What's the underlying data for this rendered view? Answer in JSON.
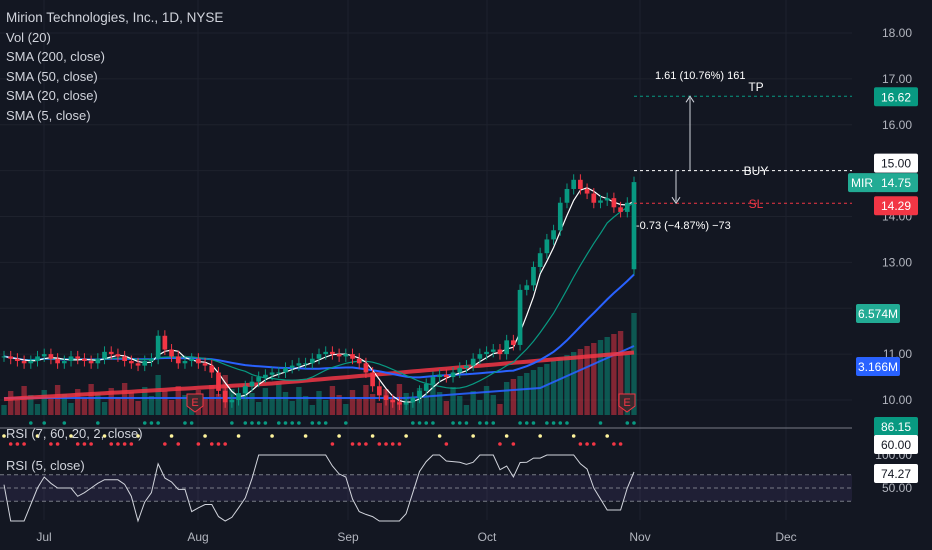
{
  "header": {
    "title": "Mirion Technologies, Inc., 1D, NYSE",
    "indicators": [
      "Vol (20)",
      "SMA (200, close)",
      "SMA (50, close)",
      "SMA (20, close)",
      "SMA (5, close)"
    ]
  },
  "rsi_stoch_label": "RSI (7, 60, 20, 2, close)",
  "rsi_label": "RSI (5, close)",
  "price_axis": [
    "18.00",
    "17.00",
    "16.00",
    "14.00",
    "13.00",
    "11.00",
    "10.00"
  ],
  "rsi_axis": [
    "100.00",
    "50.00"
  ],
  "x_axis": [
    "Jul",
    "Aug",
    "Sep",
    "Oct",
    "Nov",
    "Dec"
  ],
  "badges": {
    "tp": {
      "text": "16.62",
      "color": "#089981"
    },
    "buy": {
      "text": "15.00",
      "color": "#ffffff"
    },
    "last": {
      "ticker": "MIR",
      "text": "14.75",
      "color": "#22ab94"
    },
    "sl": {
      "text": "14.29",
      "color": "#f23645"
    },
    "vol1": {
      "text": "6.574M",
      "color": "#22ab94"
    },
    "vol2": {
      "text": "3.166M",
      "color": "#2962ff"
    },
    "rsi_a": {
      "text": "86.15",
      "color": "#089981"
    },
    "rsi_b": {
      "text": "60.00",
      "color": "#ffffff"
    },
    "rsi_c": {
      "text": "74.27",
      "color": "#ffffff"
    },
    "rsi_d": {
      "text": "50.00"
    }
  },
  "position": {
    "tp_label": "TP",
    "buy_label": "BUY",
    "sl_label": "SL",
    "tp_stat": "1.61 (10.76%) 161",
    "sl_stat": "-0.73 (−4.87%) −73",
    "tp_price": 16.62,
    "entry_price": 15.0,
    "sl_price": 14.29
  },
  "earnings_marker": "E",
  "chart_data": {
    "type": "candlestick",
    "title": "Mirion Technologies, Inc., 1D, NYSE",
    "y_range": [
      9.7,
      18.5
    ],
    "x_labels": [
      "Jul",
      "Aug",
      "Sep",
      "Oct",
      "Nov",
      "Dec"
    ],
    "last_close": 14.75,
    "closes": [
      10.95,
      10.9,
      10.85,
      10.8,
      10.85,
      10.95,
      11.0,
      10.9,
      10.8,
      10.85,
      10.95,
      10.9,
      10.85,
      10.8,
      10.9,
      11.05,
      11.0,
      10.95,
      10.85,
      10.8,
      10.75,
      10.85,
      10.9,
      11.4,
      11.1,
      10.95,
      10.8,
      10.85,
      10.9,
      10.8,
      10.75,
      10.6,
      10.2,
      9.95,
      10.0,
      10.15,
      10.3,
      10.4,
      10.5,
      10.55,
      10.6,
      10.6,
      10.7,
      10.75,
      10.8,
      10.8,
      10.9,
      11.0,
      11.05,
      11.0,
      10.95,
      11.0,
      10.9,
      10.8,
      10.6,
      10.3,
      10.1,
      10.0,
      9.95,
      9.9,
      9.95,
      10.05,
      10.2,
      10.35,
      10.5,
      10.55,
      10.5,
      10.6,
      10.7,
      10.75,
      10.9,
      11.0,
      11.05,
      11.1,
      11.0,
      11.3,
      11.2,
      12.4,
      12.5,
      12.9,
      13.2,
      13.5,
      13.7,
      14.3,
      14.6,
      14.8,
      14.6,
      14.5,
      14.3,
      14.35,
      14.4,
      14.2,
      14.1,
      14.3,
      14.75
    ],
    "vol_series": [
      "Vol (20)"
    ],
    "sma": [
      "SMA (200, close)",
      "SMA (50, close)",
      "SMA (20, close)",
      "SMA (5, close)"
    ],
    "rsi_5_last": 74.27,
    "rsi_stoch_last": 86.15
  }
}
